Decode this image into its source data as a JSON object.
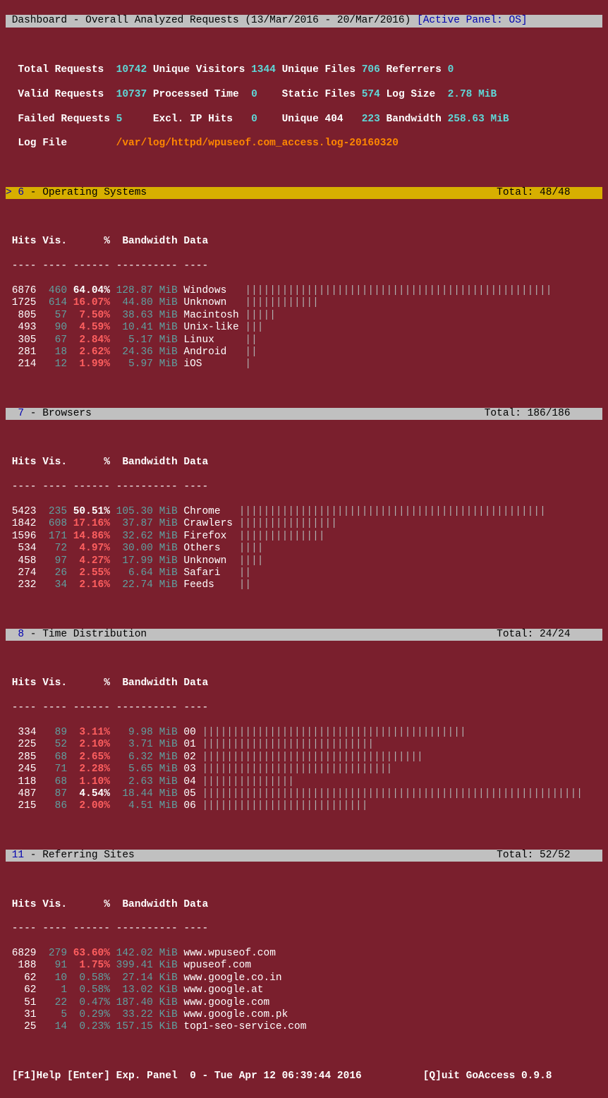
{
  "header": {
    "title": "Dashboard - Overall Analyzed Requests (13/Mar/2016 - 20/Mar/2016)",
    "active_panel": "[Active Panel: OS]"
  },
  "stats": {
    "total_requests_lbl": "Total Requests ",
    "total_requests_val": "10742",
    "unique_visitors_lbl": "Unique Visitors",
    "unique_visitors_val": "1344",
    "unique_files_lbl": "Unique Files",
    "unique_files_val": "706",
    "referrers_lbl": "Referrers",
    "referrers_val": "0",
    "valid_requests_lbl": "Valid Requests ",
    "valid_requests_val": "10737",
    "processed_time_lbl": "Processed Time ",
    "processed_time_val": "0",
    "static_files_lbl": "Static Files",
    "static_files_val": "574",
    "log_size_lbl": "Log Size ",
    "log_size_val": "2.78 MiB",
    "failed_requests_lbl": "Failed Requests",
    "failed_requests_val": "5",
    "excl_ip_hits_lbl": "Excl. IP Hits  ",
    "excl_ip_hits_val": "0",
    "unique_404_lbl": "Unique 404  ",
    "unique_404_val": "223",
    "bandwidth_lbl": "Bandwidth",
    "bandwidth_val": "258.63 MiB",
    "log_file_lbl": "Log File       ",
    "log_file_val": "/var/log/httpd/wpuseof.com_access.log-20160320"
  },
  "panel6": {
    "prefix": "> 6",
    "title": " - Operating Systems",
    "total": "Total: 48/48",
    "cols": {
      "hits": "Hits",
      "vis": "Vis.",
      "pct": "%",
      "bw": "Bandwidth",
      "data": "Data"
    },
    "rows": [
      {
        "hits": "6876",
        "vis": "460",
        "pct": "64.04%",
        "bw": "128.87 MiB",
        "data": "Windows",
        "bar": "||||||||||||||||||||||||||||||||||||||||||||||||||"
      },
      {
        "hits": "1725",
        "vis": "614",
        "pct": "16.07%",
        "bw": " 44.80 MiB",
        "data": "Unknown",
        "bar": "||||||||||||"
      },
      {
        "hits": "805",
        "vis": "57",
        "pct": "7.50%",
        "bw": " 38.63 MiB",
        "data": "Macintosh",
        "bar": "|||||"
      },
      {
        "hits": "493",
        "vis": "90",
        "pct": "4.59%",
        "bw": " 10.41 MiB",
        "data": "Unix-like",
        "bar": "|||"
      },
      {
        "hits": "305",
        "vis": "67",
        "pct": "2.84%",
        "bw": "  5.17 MiB",
        "data": "Linux",
        "bar": "||"
      },
      {
        "hits": "281",
        "vis": "18",
        "pct": "2.62%",
        "bw": " 24.36 MiB",
        "data": "Android",
        "bar": "||"
      },
      {
        "hits": "214",
        "vis": "12",
        "pct": "1.99%",
        "bw": "  5.97 MiB",
        "data": "iOS",
        "bar": "|"
      }
    ]
  },
  "panel7": {
    "prefix": "  7",
    "title": " - Browsers",
    "total": "Total: 186/186",
    "rows": [
      {
        "hits": "5423",
        "vis": "235",
        "pct": "50.51%",
        "bw": "105.30 MiB",
        "data": "Chrome",
        "bar": "||||||||||||||||||||||||||||||||||||||||||||||||||"
      },
      {
        "hits": "1842",
        "vis": "608",
        "pct": "17.16%",
        "bw": " 37.87 MiB",
        "data": "Crawlers",
        "bar": "||||||||||||||||"
      },
      {
        "hits": "1596",
        "vis": "171",
        "pct": "14.86%",
        "bw": " 32.62 MiB",
        "data": "Firefox",
        "bar": "||||||||||||||"
      },
      {
        "hits": "534",
        "vis": "72",
        "pct": "4.97%",
        "bw": " 30.00 MiB",
        "data": "Others",
        "bar": "||||"
      },
      {
        "hits": "458",
        "vis": "97",
        "pct": "4.27%",
        "bw": " 17.99 MiB",
        "data": "Unknown",
        "bar": "||||"
      },
      {
        "hits": "274",
        "vis": "26",
        "pct": "2.55%",
        "bw": "  6.64 MiB",
        "data": "Safari",
        "bar": "||"
      },
      {
        "hits": "232",
        "vis": "34",
        "pct": "2.16%",
        "bw": " 22.74 MiB",
        "data": "Feeds",
        "bar": "||"
      }
    ]
  },
  "panel8": {
    "prefix": "  8",
    "title": " - Time Distribution",
    "total": "Total: 24/24",
    "rows": [
      {
        "hits": "334",
        "vis": "89",
        "pct": "3.11%",
        "bw": "  9.98 MiB",
        "data": "00",
        "bar": "|||||||||||||||||||||||||||||||||||||||||||"
      },
      {
        "hits": "225",
        "vis": "52",
        "pct": "2.10%",
        "bw": "  3.71 MiB",
        "data": "01",
        "bar": "||||||||||||||||||||||||||||"
      },
      {
        "hits": "285",
        "vis": "68",
        "pct": "2.65%",
        "bw": "  6.32 MiB",
        "data": "02",
        "bar": "||||||||||||||||||||||||||||||||||||"
      },
      {
        "hits": "245",
        "vis": "71",
        "pct": "2.28%",
        "bw": "  5.65 MiB",
        "data": "03",
        "bar": "|||||||||||||||||||||||||||||||"
      },
      {
        "hits": "118",
        "vis": "68",
        "pct": "1.10%",
        "bw": "  2.63 MiB",
        "data": "04",
        "bar": "|||||||||||||||"
      },
      {
        "hits": "487",
        "vis": "87",
        "pct": "4.54%",
        "bw": " 18.44 MiB",
        "data": "05",
        "bar": "||||||||||||||||||||||||||||||||||||||||||||||||||||||||||||||"
      },
      {
        "hits": "215",
        "vis": "86",
        "pct": "2.00%",
        "bw": "  4.51 MiB",
        "data": "06",
        "bar": "|||||||||||||||||||||||||||"
      }
    ]
  },
  "panel11": {
    "prefix": " 11",
    "title": " - Referring Sites",
    "total": "Total: 52/52",
    "rows": [
      {
        "hits": "6829",
        "vis": "279",
        "pct": "63.60%",
        "bw": "142.02 MiB",
        "data": "www.wpuseof.com"
      },
      {
        "hits": "188",
        "vis": "91",
        "pct": "1.75%",
        "bw": "399.41 KiB",
        "data": "wpuseof.com"
      },
      {
        "hits": "62",
        "vis": "10",
        "pct": "0.58%",
        "bw": " 27.14 KiB",
        "data": "www.google.co.in"
      },
      {
        "hits": "62",
        "vis": "1",
        "pct": "0.58%",
        "bw": " 13.02 KiB",
        "data": "www.google.at"
      },
      {
        "hits": "51",
        "vis": "22",
        "pct": "0.47%",
        "bw": "187.40 KiB",
        "data": "www.google.com"
      },
      {
        "hits": "31",
        "vis": "5",
        "pct": "0.29%",
        "bw": " 33.22 KiB",
        "data": "www.google.com.pk"
      },
      {
        "hits": "25",
        "vis": "14",
        "pct": "0.23%",
        "bw": "157.15 KiB",
        "data": "top1-seo-service.com"
      }
    ]
  },
  "footer": {
    "help": "[F1]Help",
    "expand": "[Enter] Exp. Panel",
    "time": "0 - Tue Apr 12 06:39:44 2016",
    "quit": "[Q]uit",
    "app": "GoAccess 0.9.8"
  },
  "chars": {
    "col_underline_hits": "----",
    "col_underline_vis": "----",
    "col_underline_pct": "------",
    "col_underline_bw": "----------",
    "col_underline_data": "----"
  }
}
